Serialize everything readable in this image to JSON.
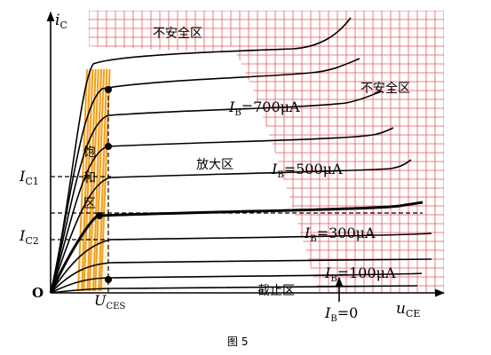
{
  "axes": {
    "y_label_main": "i",
    "y_label_sub": "C",
    "x_label_main": "u",
    "x_label_sub": "CE",
    "origin": "O"
  },
  "y_markers": [
    {
      "main": "I",
      "sub": "C1"
    },
    {
      "main": "I",
      "sub": "C2"
    }
  ],
  "x_marker": {
    "main": "U",
    "sub": "CES"
  },
  "regions": {
    "unsafe_top": "不安全区",
    "unsafe_right": "不安全区",
    "amplify": "放大区",
    "saturation_chars": [
      "饱",
      "和",
      "区"
    ],
    "cutoff": "截止区"
  },
  "curve_labels": [
    {
      "main": "I",
      "sub": "B",
      "value": "=700μA"
    },
    {
      "main": "I",
      "sub": "B",
      "value": "=500μA"
    },
    {
      "main": "I",
      "sub": "B",
      "value": "=300μA"
    },
    {
      "main": "I",
      "sub": "B",
      "value": "=100μA"
    },
    {
      "main": "I",
      "sub": "B",
      "value": "=0"
    }
  ],
  "caption": "图 5",
  "colors": {
    "grid": "#e35a5a",
    "saturation_fill": "#f0a020",
    "ink": "#000000"
  }
}
